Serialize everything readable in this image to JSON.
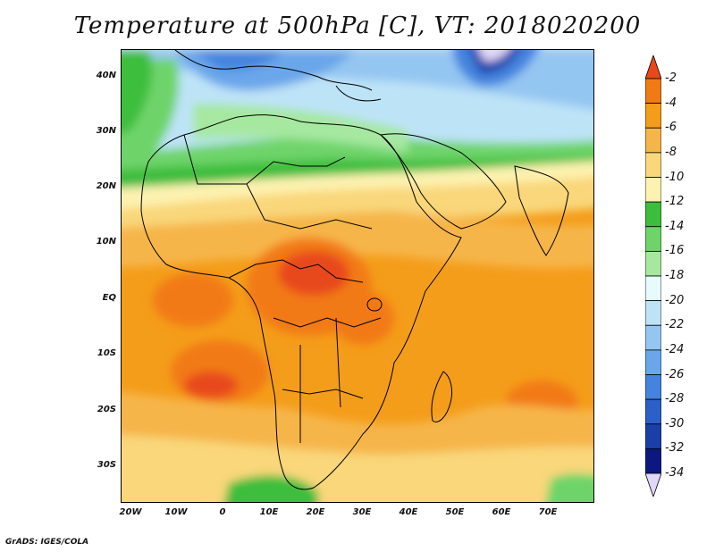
{
  "title": "Temperature at 500hPa [C], VT: 2018020200",
  "credit": "GrADS: IGES/COLA",
  "lat_labels": [
    "40N",
    "30N",
    "20N",
    "10N",
    "EQ",
    "10S",
    "20S",
    "30S"
  ],
  "lon_labels": [
    "20W",
    "10W",
    "0",
    "10E",
    "20E",
    "30E",
    "40E",
    "50E",
    "60E",
    "70E"
  ],
  "colorbar": {
    "labels": [
      "-2",
      "-4",
      "-6",
      "-8",
      "-10",
      "-12",
      "-14",
      "-16",
      "-18",
      "-20",
      "-22",
      "-24",
      "-26",
      "-28",
      "-30",
      "-32",
      "-34"
    ],
    "colors": [
      "#e8481c",
      "#f27a14",
      "#f49d1a",
      "#f6b548",
      "#f9d77a",
      "#fdf2b0",
      "#3cbe3c",
      "#6ed46a",
      "#a6e8a0",
      "#e6fbfa",
      "#bde3f7",
      "#94c6f2",
      "#6aa6ea",
      "#4584de",
      "#2a60c8",
      "#1a40a8",
      "#0c1880",
      "#e0d8f8"
    ]
  }
}
